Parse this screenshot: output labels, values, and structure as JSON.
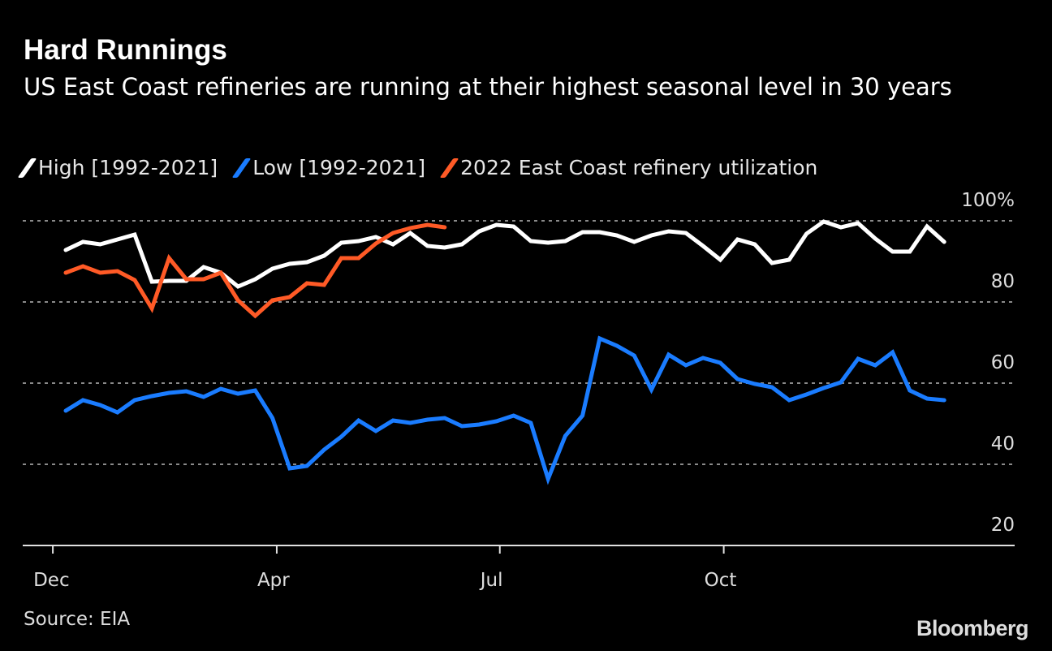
{
  "title": "Hard Runnings",
  "subtitle": "US East Coast refineries are running at their highest seasonal level in 30 years",
  "source": "Source: EIA",
  "logo": "Bloomberg",
  "chart_data": {
    "type": "line",
    "title": "Hard Runnings",
    "subtitle": "US East Coast refineries are running at their highest seasonal level in 30 years",
    "xlabel": "",
    "ylabel": "",
    "x_tick_labels": [
      "Dec",
      "Apr",
      "Jul",
      "Oct"
    ],
    "y_ticks": [
      20,
      40,
      60,
      80,
      100
    ],
    "y_tick_labels": [
      "20",
      "40",
      "60",
      "80",
      "100%"
    ],
    "ylim": [
      20,
      100
    ],
    "grid": true,
    "legend_position": "top-left",
    "series": [
      {
        "name": "High [1992-2021]",
        "color": "#ffffff",
        "values": [
          92.8,
          94.8,
          94.2,
          95.4,
          96.6,
          85,
          85.2,
          85.2,
          88.6,
          87.2,
          83.8,
          85.6,
          88.2,
          89.4,
          89.8,
          91.4,
          94.6,
          95,
          96,
          94.2,
          97,
          93.8,
          93.4,
          94.2,
          97.4,
          99,
          98.6,
          95,
          94.6,
          95,
          97.2,
          97.2,
          96.4,
          94.8,
          96.4,
          97.4,
          97,
          93.8,
          90.4,
          95.4,
          94.2,
          89.6,
          90.4,
          96.8,
          99.8,
          98.4,
          99.4,
          95.6,
          92.4,
          92.4,
          98.6,
          94.8
        ]
      },
      {
        "name": "Low [1992-2021]",
        "color": "#1a7cff",
        "values": [
          53.2,
          55.8,
          54.6,
          52.8,
          55.8,
          56.8,
          57.6,
          58,
          56.6,
          58.6,
          57.4,
          58.2,
          51.4,
          39,
          39.6,
          43.6,
          46.8,
          50.8,
          48.2,
          50.8,
          50.2,
          51,
          51.4,
          49.4,
          49.8,
          50.6,
          52,
          50.2,
          36.4,
          47,
          52,
          71,
          69.2,
          66.8,
          58.4,
          67,
          64.4,
          66.2,
          65,
          61,
          59.8,
          59,
          55.8,
          57.2,
          58.8,
          60.2,
          66,
          64.4,
          67.6,
          58.2,
          56.2,
          55.8
        ]
      },
      {
        "name": "2022 East Coast refinery utilization",
        "color": "#ff5a26",
        "values": [
          87.2,
          88.8,
          87.2,
          87.6,
          85.4,
          78.4,
          90.8,
          85.6,
          85.6,
          87.2,
          80.4,
          76.6,
          80.4,
          81.2,
          84.6,
          84.2,
          90.8,
          90.8,
          94.4,
          97,
          98.2,
          99,
          98.4
        ]
      }
    ]
  }
}
